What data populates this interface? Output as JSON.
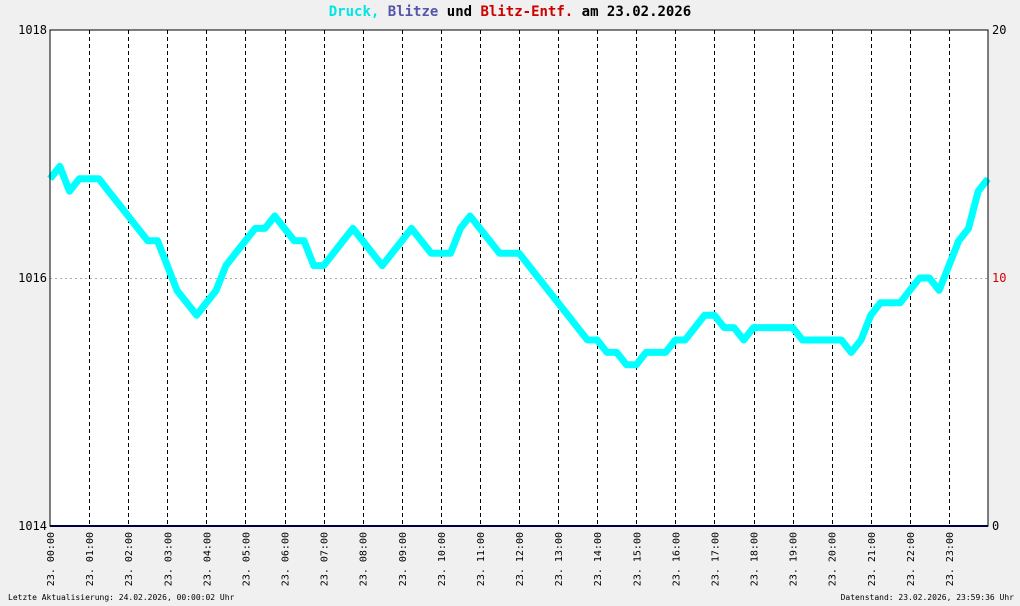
{
  "title": {
    "parts": [
      {
        "text": "Druck,",
        "color": "#00e5e5"
      },
      {
        "text": " ",
        "color": "#000000"
      },
      {
        "text": "Blitze",
        "color": "#5555aa"
      },
      {
        "text": " und ",
        "color": "#000000"
      },
      {
        "text": "Blitz-Entf.",
        "color": "#cc0000"
      },
      {
        "text": " am 23.02.2026",
        "color": "#000000"
      }
    ]
  },
  "footer": {
    "left": "Letzte Aktualisierung: 24.02.2026, 00:00:02 Uhr",
    "right": "Datenstand: 23.02.2026, 23:59:36 Uhr"
  },
  "colors": {
    "pressure": "#00ffff",
    "lightning": "#000080",
    "distance_axis": "#cc0000",
    "grid": "#000000"
  },
  "chart_data": {
    "type": "line",
    "y_left": {
      "min": 1014,
      "max": 1018,
      "ticks": [
        "1014",
        "1016",
        "1018"
      ]
    },
    "y_right": {
      "min": 0,
      "max": 20,
      "ticks": [
        "0",
        "10",
        "20"
      ]
    },
    "x_range_hours": [
      0,
      24
    ],
    "x_ticks": [
      "23. 00:00",
      "23. 01:00",
      "23. 02:00",
      "23. 03:00",
      "23. 04:00",
      "23. 05:00",
      "23. 06:00",
      "23. 07:00",
      "23. 08:00",
      "23. 09:00",
      "23. 10:00",
      "23. 11:00",
      "23. 12:00",
      "23. 13:00",
      "23. 14:00",
      "23. 15:00",
      "23. 16:00",
      "23. 17:00",
      "23. 18:00",
      "23. 19:00",
      "23. 20:00",
      "23. 21:00",
      "23. 22:00",
      "23. 23:00"
    ],
    "series": [
      {
        "name": "Druck",
        "x": [
          0.0,
          0.25,
          0.5,
          0.75,
          1.0,
          1.25,
          1.5,
          1.75,
          2.0,
          2.25,
          2.5,
          2.75,
          3.0,
          3.25,
          3.5,
          3.75,
          4.0,
          4.25,
          4.5,
          4.75,
          5.0,
          5.25,
          5.5,
          5.75,
          6.0,
          6.25,
          6.5,
          6.75,
          7.0,
          7.25,
          7.5,
          7.75,
          8.0,
          8.25,
          8.5,
          8.75,
          9.0,
          9.25,
          9.5,
          9.75,
          10.0,
          10.25,
          10.5,
          10.75,
          11.0,
          11.25,
          11.5,
          11.75,
          12.0,
          12.25,
          12.5,
          12.75,
          13.0,
          13.25,
          13.5,
          13.75,
          14.0,
          14.25,
          14.5,
          14.75,
          15.0,
          15.25,
          15.5,
          15.75,
          16.0,
          16.25,
          16.5,
          16.75,
          17.0,
          17.25,
          17.5,
          17.75,
          18.0,
          18.25,
          18.5,
          18.75,
          19.0,
          19.25,
          19.5,
          19.75,
          20.0,
          20.25,
          20.5,
          20.75,
          21.0,
          21.25,
          21.5,
          21.75,
          22.0,
          22.25,
          22.5,
          22.75,
          23.0,
          23.25,
          23.5,
          23.75,
          24.0
        ],
        "y": [
          1016.8,
          1016.9,
          1016.7,
          1016.8,
          1016.8,
          1016.8,
          1016.7,
          1016.6,
          1016.5,
          1016.4,
          1016.3,
          1016.3,
          1016.1,
          1015.9,
          1015.8,
          1015.7,
          1015.8,
          1015.9,
          1016.1,
          1016.2,
          1016.3,
          1016.4,
          1016.4,
          1016.5,
          1016.4,
          1016.3,
          1016.3,
          1016.1,
          1016.1,
          1016.2,
          1016.3,
          1016.4,
          1016.3,
          1016.2,
          1016.1,
          1016.2,
          1016.3,
          1016.4,
          1016.3,
          1016.2,
          1016.2,
          1016.2,
          1016.4,
          1016.5,
          1016.4,
          1016.3,
          1016.2,
          1016.2,
          1016.2,
          1016.1,
          1016.0,
          1015.9,
          1015.8,
          1015.7,
          1015.6,
          1015.5,
          1015.5,
          1015.4,
          1015.4,
          1015.3,
          1015.3,
          1015.4,
          1015.4,
          1015.4,
          1015.5,
          1015.5,
          1015.6,
          1015.7,
          1015.7,
          1015.6,
          1015.6,
          1015.5,
          1015.6,
          1015.6,
          1015.6,
          1015.6,
          1015.6,
          1015.5,
          1015.5,
          1015.5,
          1015.5,
          1015.5,
          1015.4,
          1015.5,
          1015.7,
          1015.8,
          1015.8,
          1015.8,
          1015.9,
          1016.0,
          1016.0,
          1015.9,
          1016.1,
          1016.3,
          1016.4,
          1016.7,
          1016.8
        ]
      },
      {
        "name": "Blitze",
        "x": [
          0,
          24
        ],
        "y": [
          0,
          0
        ]
      }
    ]
  }
}
